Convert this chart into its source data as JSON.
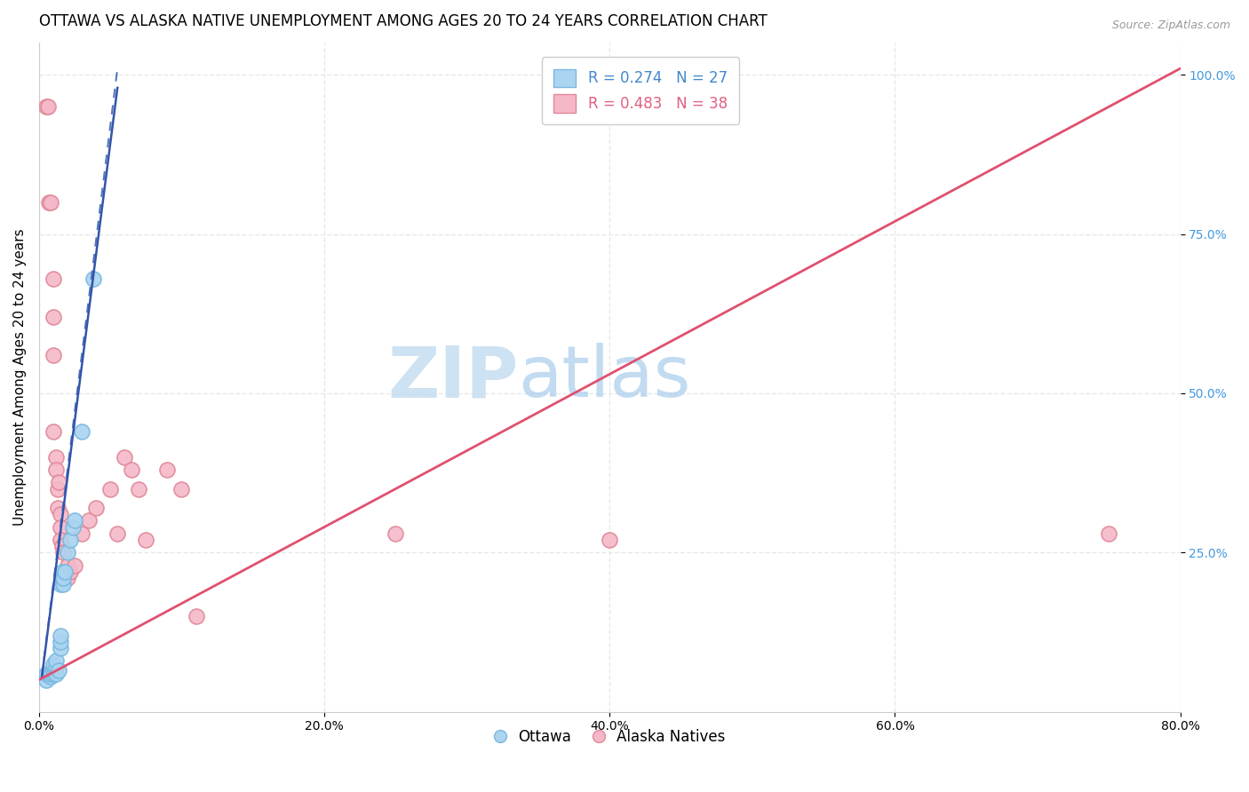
{
  "title": "OTTAWA VS ALASKA NATIVE UNEMPLOYMENT AMONG AGES 20 TO 24 YEARS CORRELATION CHART",
  "source_text": "Source: ZipAtlas.com",
  "ylabel": "Unemployment Among Ages 20 to 24 years",
  "xlim": [
    0.0,
    0.8
  ],
  "ylim": [
    0.0,
    1.05
  ],
  "xticks": [
    0.0,
    0.2,
    0.4,
    0.6,
    0.8
  ],
  "xticklabels": [
    "0.0%",
    "20.0%",
    "40.0%",
    "60.0%",
    "80.0%"
  ],
  "ytick_positions": [
    0.25,
    0.5,
    0.75,
    1.0
  ],
  "yticklabels": [
    "25.0%",
    "50.0%",
    "75.0%",
    "100.0%"
  ],
  "ottawa_color": "#aad4f0",
  "ottawa_edge_color": "#7ab8e0",
  "alaska_color": "#f5b8c8",
  "alaska_edge_color": "#e08898",
  "ottawa_R": 0.274,
  "ottawa_N": 27,
  "alaska_R": 0.483,
  "alaska_N": 38,
  "watermark_zip": "ZIP",
  "watermark_atlas": "atlas",
  "ottawa_scatter_x": [
    0.005,
    0.005,
    0.008,
    0.008,
    0.01,
    0.01,
    0.01,
    0.01,
    0.012,
    0.012,
    0.012,
    0.014,
    0.015,
    0.015,
    0.015,
    0.015,
    0.016,
    0.016,
    0.017,
    0.017,
    0.018,
    0.02,
    0.022,
    0.024,
    0.025,
    0.03,
    0.038
  ],
  "ottawa_scatter_y": [
    0.05,
    0.06,
    0.055,
    0.06,
    0.06,
    0.065,
    0.07,
    0.075,
    0.06,
    0.07,
    0.08,
    0.065,
    0.1,
    0.11,
    0.12,
    0.2,
    0.21,
    0.22,
    0.2,
    0.21,
    0.22,
    0.25,
    0.27,
    0.29,
    0.3,
    0.44,
    0.68
  ],
  "alaska_scatter_x": [
    0.005,
    0.006,
    0.007,
    0.008,
    0.01,
    0.01,
    0.01,
    0.01,
    0.012,
    0.012,
    0.013,
    0.013,
    0.014,
    0.015,
    0.015,
    0.015,
    0.016,
    0.017,
    0.018,
    0.02,
    0.02,
    0.022,
    0.025,
    0.03,
    0.035,
    0.04,
    0.05,
    0.055,
    0.06,
    0.065,
    0.07,
    0.075,
    0.09,
    0.1,
    0.11,
    0.25,
    0.4,
    0.75
  ],
  "alaska_scatter_y": [
    0.95,
    0.95,
    0.8,
    0.8,
    0.68,
    0.62,
    0.56,
    0.44,
    0.4,
    0.38,
    0.35,
    0.32,
    0.36,
    0.31,
    0.29,
    0.27,
    0.26,
    0.25,
    0.22,
    0.23,
    0.21,
    0.22,
    0.23,
    0.28,
    0.3,
    0.32,
    0.35,
    0.28,
    0.4,
    0.38,
    0.35,
    0.27,
    0.38,
    0.35,
    0.15,
    0.28,
    0.27,
    0.28
  ],
  "ottawa_trend_intercept": 0.02,
  "ottawa_trend_slope": 18.0,
  "ottawa_trend_x_start": 0.002,
  "ottawa_trend_x_end": 0.055,
  "alaska_trend_intercept": 0.05,
  "alaska_trend_slope": 1.2,
  "alaska_trend_x_start": 0.0,
  "alaska_trend_x_end": 0.8,
  "grid_color": "#e8e8e8",
  "grid_linestyle": "--",
  "background_color": "#ffffff",
  "title_fontsize": 12,
  "axis_fontsize": 11,
  "tick_fontsize": 10,
  "legend_fontsize": 12,
  "ottawa_legend_color": "#4488cc",
  "alaska_legend_color": "#e06080",
  "ytick_color": "#4499dd"
}
